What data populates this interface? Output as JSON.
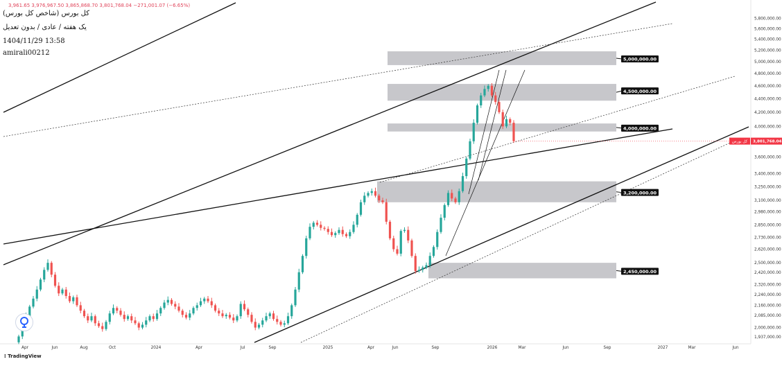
{
  "header": {
    "title": "کل بورس (شاخص کل بورس)",
    "subtitle": "یک هفته / عادی / بدون تعدیل",
    "datetime": "1404/11/29 13:58",
    "author": "amirali00212",
    "ohlc_text": "3,961.65 3,976,967.50 3,865,868.70 3,801,768.04 −271,001.07 (−6.65%)"
  },
  "footer": {
    "brand": "TradingView"
  },
  "colors": {
    "up": "#26a69a",
    "down": "#ef5350",
    "zone": "#bdbdc2",
    "line": "#111111",
    "price_tag": "#f23645"
  },
  "chart_data": {
    "type": "candlestick",
    "y_scale": "log",
    "ylim": [
      1937000,
      5950000
    ],
    "price_tag": {
      "value": "3,801,768.04",
      "label": "کل بورس"
    },
    "x_ticks": [
      "Apr",
      "Jun",
      "Aug",
      "Oct",
      "2024",
      "Apr",
      "Jul",
      "Sep",
      "2025",
      "Apr",
      "Jun",
      "Sep",
      "2026",
      "Mar",
      "Jun",
      "Sep",
      "2027",
      "Mar",
      "Jun"
    ],
    "y_ticks": [
      "5,800,000.00",
      "5,600,000.00",
      "5,400,000.00",
      "5,200,000.00",
      "5,000,000.00",
      "4,800,000.00",
      "4,600,000.00",
      "4,400,000.00",
      "4,200,000.00",
      "4,000,000.00",
      "3,800,000.00",
      "3,600,000.00",
      "3,400,000.00",
      "3,250,000.00",
      "3,100,000.00",
      "2,980,000.00",
      "2,850,000.00",
      "2,730,000.00",
      "2,620,000.00",
      "2,500,000.00",
      "2,420,000.00",
      "2,320,000.00",
      "2,240,000.00",
      "2,160,000.00",
      "2,085,000.00",
      "2,000,000.00",
      "1,937,000.00"
    ],
    "zones": [
      {
        "label": "5,000,000.00",
        "low": 4940000,
        "high": 5180000
      },
      {
        "label": "4,500,000.00",
        "low": 4370000,
        "high": 4630000
      },
      {
        "label": "4,000,000.00",
        "low": 3930000,
        "high": 4040000
      },
      {
        "label": "3,200,000.00",
        "low": 3080000,
        "high": 3310000
      },
      {
        "label": "2,450,000.00",
        "low": 2370000,
        "high": 2500000
      }
    ],
    "series": [
      {
        "values": [
          1940000,
          2010000,
          2080000,
          2150000,
          2210000,
          2280000,
          2360000,
          2440000,
          2500000,
          2400000,
          2310000,
          2250000,
          2280000,
          2230000,
          2190000,
          2220000,
          2160000,
          2120000,
          2080000,
          2050000,
          2080000,
          2030000,
          2010000,
          1990000,
          2040000,
          2100000,
          2140000,
          2120000,
          2090000,
          2060000,
          2080000,
          2050000,
          2030000,
          2000000,
          2020000,
          2050000,
          2080000,
          2060000,
          2100000,
          2140000,
          2180000,
          2200000,
          2170000,
          2150000,
          2120000,
          2090000,
          2070000,
          2100000,
          2140000,
          2160000,
          2190000,
          2210000,
          2190000,
          2160000,
          2120000,
          2100000,
          2080000,
          2090000,
          2070000,
          2050000,
          2080000,
          2170000,
          2130000,
          2090000,
          2040000,
          2000000,
          2020000,
          2050000,
          2080000,
          2100000,
          2060000,
          2040000,
          2020000,
          2030000,
          2080000,
          2160000,
          2280000,
          2420000,
          2560000,
          2720000,
          2830000,
          2870000,
          2850000,
          2820000,
          2810000,
          2780000,
          2750000,
          2770000,
          2800000,
          2760000,
          2740000,
          2780000,
          2850000,
          2950000,
          3080000,
          3150000,
          3180000,
          3200000,
          3150000,
          3100000,
          3080000,
          2880000,
          2720000,
          2620000,
          2580000,
          2790000,
          2800000,
          2700000,
          2560000,
          2430000,
          2440000,
          2460000,
          2480000,
          2560000,
          2640000,
          2780000,
          2920000,
          3050000,
          3180000,
          3120000,
          3080000,
          3200000,
          3370000,
          3580000,
          3800000,
          4050000,
          4300000,
          4450000,
          4550000,
          4600000,
          4450000,
          4350000,
          4200000,
          4000000,
          4100000,
          4050000,
          3801768
        ]
      }
    ]
  }
}
